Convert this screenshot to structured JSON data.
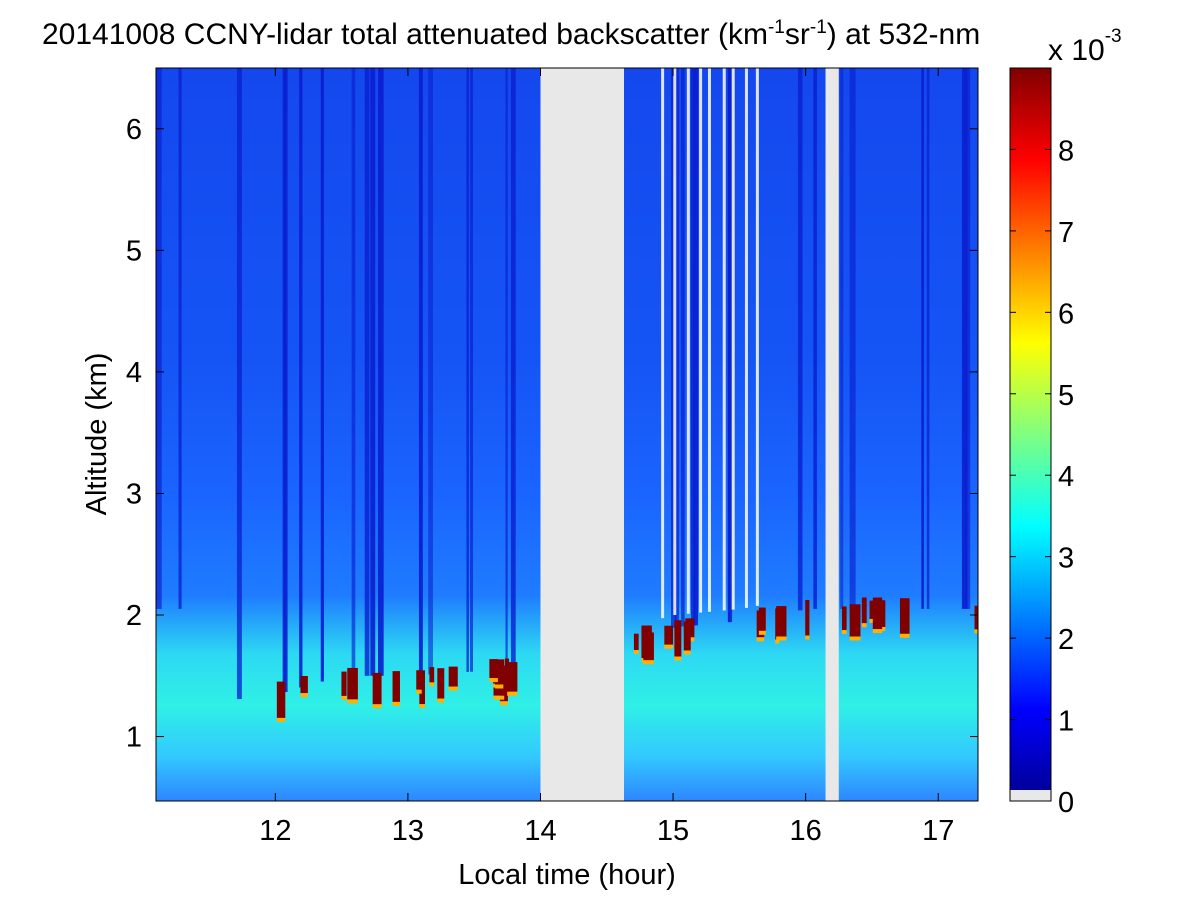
{
  "chart_data": {
    "type": "heatmap",
    "title_parts": [
      "20141008 CCNY-lidar total attenuated backscatter (km",
      "-1",
      "sr",
      "-1",
      ") at 532-nm"
    ],
    "xlabel": "Local time (hour)",
    "ylabel": "Altitude (km)",
    "xlim": [
      11.1,
      17.3
    ],
    "ylim": [
      0.47,
      6.5
    ],
    "xticks": [
      12,
      13,
      14,
      15,
      16,
      17
    ],
    "yticks": [
      1,
      2,
      3,
      4,
      5,
      6
    ],
    "colorbar": {
      "ticks": [
        0,
        1,
        2,
        3,
        4,
        5,
        6,
        7,
        8
      ],
      "range": [
        0,
        9
      ],
      "exponent_parts": [
        "x 10",
        "-3"
      ],
      "colormap": "jet"
    },
    "data_segments": [
      {
        "x": [
          11.1,
          14.0
        ]
      },
      {
        "x": [
          14.63,
          16.15
        ]
      },
      {
        "x": [
          16.25,
          17.3
        ]
      }
    ],
    "no_data_color": "#e8e8e8",
    "boundary_layer_top_km": [
      {
        "x": 11.3,
        "y": 1.25
      },
      {
        "x": 12.0,
        "y": 1.35
      },
      {
        "x": 12.5,
        "y": 1.5
      },
      {
        "x": 13.0,
        "y": 1.5
      },
      {
        "x": 13.7,
        "y": 1.55
      },
      {
        "x": 14.0,
        "y": 1.75
      },
      {
        "x": 14.65,
        "y": 1.8
      },
      {
        "x": 15.0,
        "y": 1.9
      },
      {
        "x": 15.5,
        "y": 1.95
      },
      {
        "x": 16.0,
        "y": 2.05
      },
      {
        "x": 16.5,
        "y": 2.05
      },
      {
        "x": 17.0,
        "y": 2.05
      },
      {
        "x": 17.3,
        "y": 2.05
      }
    ]
  }
}
